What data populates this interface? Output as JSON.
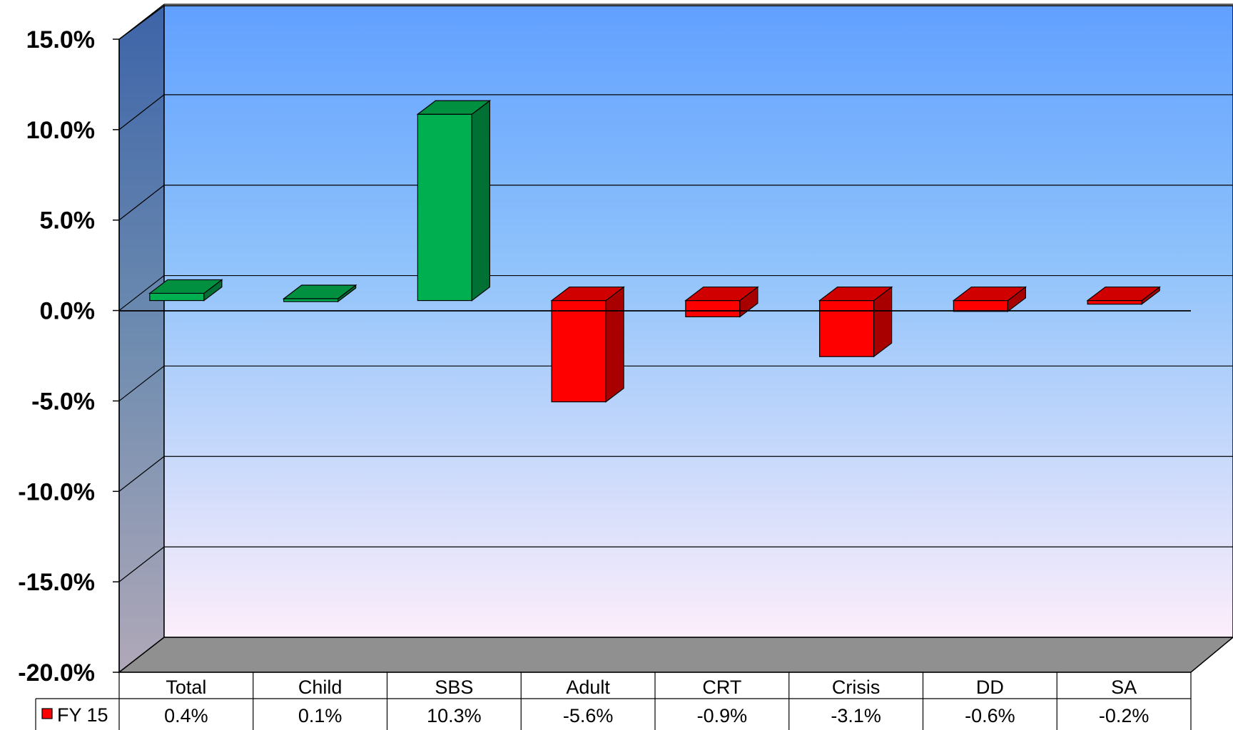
{
  "chart_data": {
    "type": "bar",
    "title": "",
    "xlabel": "",
    "ylabel": "",
    "categories": [
      "Total",
      "Child",
      "SBS",
      "Adult",
      "CRT",
      "Crisis",
      "DD",
      "SA"
    ],
    "series": [
      {
        "name": "FY 15",
        "values": [
          0.4,
          0.1,
          10.3,
          -5.6,
          -0.9,
          -3.1,
          -0.6,
          -0.2
        ]
      }
    ],
    "value_labels": [
      "0.4%",
      "0.1%",
      "10.3%",
      "-5.6%",
      "-0.9%",
      "-3.1%",
      "-0.6%",
      "-0.2%"
    ],
    "ylim": [
      -20,
      15
    ],
    "yticks": [
      15,
      10,
      5,
      0,
      -5,
      -10,
      -15,
      -20
    ],
    "ytick_labels": [
      "15.0%",
      "10.0%",
      "5.0%",
      "0.0%",
      "-5.0%",
      "-10.0%",
      "-15.0%",
      "-20.0%"
    ],
    "grid": true,
    "legend": "data-table",
    "colors": {
      "positive": "#00b050",
      "negative": "#ff0000",
      "legend_swatch": "#ff0000",
      "wall_top": "#61a0ff",
      "wall_bottom": "#fdeefb",
      "floor": "#909090"
    }
  }
}
